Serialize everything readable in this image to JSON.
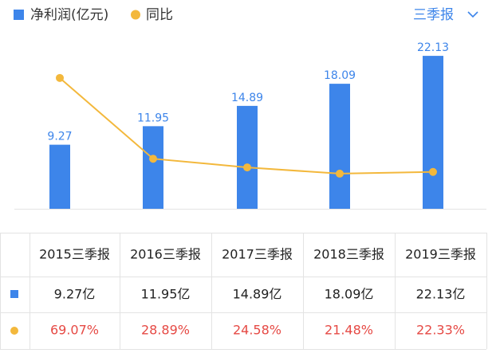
{
  "controls": {
    "period": "三季报"
  },
  "chart_data": {
    "type": "bar",
    "categories": [
      "2015三季报",
      "2016三季报",
      "2017三季报",
      "2018三季报",
      "2019三季报"
    ],
    "ylim": [
      0,
      25.6
    ],
    "y2lim": [
      4,
      92
    ],
    "series": [
      {
        "name": "净利润(亿元)",
        "color": "#3d85ea",
        "values": [
          9.27,
          11.95,
          14.89,
          18.09,
          22.13
        ],
        "value_labels": [
          "9.27亿",
          "11.95亿",
          "14.89亿",
          "18.09亿",
          "22.13亿"
        ]
      },
      {
        "name": "同比",
        "type": "line",
        "axis": "y2",
        "color": "#f3b83c",
        "values": [
          69.07,
          28.89,
          24.58,
          21.48,
          22.33
        ],
        "value_labels": [
          "69.07%",
          "28.89%",
          "24.58%",
          "21.48%",
          "22.33%"
        ]
      }
    ]
  }
}
